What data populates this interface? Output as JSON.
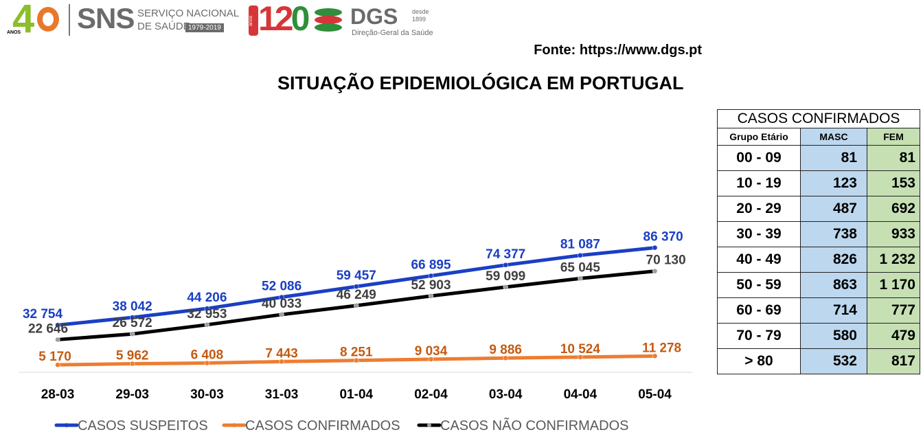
{
  "header": {
    "logo40_number": "4",
    "logo40_anos": "ANOS",
    "sns_name": "SNS",
    "sns_line1": "SERVIÇO NACIONAL",
    "sns_line2": "DE SAÚDE",
    "sns_years": "1979-2019",
    "dgs_anos": "anos",
    "dgs_120_a": "12",
    "dgs_120_b": "0",
    "dgs_name": "DGS",
    "dgs_desde": "desde",
    "dgs_year": "1899",
    "dgs_full": "Direção-Geral da Saúde"
  },
  "source": "Fonte: https://www.dgs.pt",
  "title": "SITUAÇÃO EPIDEMIOLÓGICA EM PORTUGAL",
  "colors": {
    "suspeitos": "#1a3fc4",
    "confirmados": "#ed7d31",
    "confirmados_label": "#c55a11",
    "nao_confirmados": "#000000",
    "nao_confirmados_label": "#404040",
    "masc_cell": "#bdd7ee",
    "fem_cell": "#c6e0b4"
  },
  "chart_data": {
    "type": "line",
    "categories": [
      "28-03",
      "29-03",
      "30-03",
      "31-03",
      "01-04",
      "02-04",
      "03-04",
      "04-04",
      "05-04"
    ],
    "series": [
      {
        "name": "CASOS SUSPEITOS",
        "values": [
          32754,
          38042,
          44206,
          52086,
          59457,
          66895,
          74377,
          81087,
          86370
        ],
        "labels": [
          "32 754",
          "38 042",
          "44 206",
          "52 086",
          "59 457",
          "66 895",
          "74 377",
          "81 087",
          "86 370"
        ]
      },
      {
        "name": "CASOS CONFIRMADOS",
        "values": [
          5170,
          5962,
          6408,
          7443,
          8251,
          9034,
          9886,
          10524,
          11278
        ],
        "labels": [
          "5 170",
          "5 962",
          "6 408",
          "7 443",
          "8 251",
          "9 034",
          "9 886",
          "10 524",
          "11 278"
        ]
      },
      {
        "name": "CASOS NÃO CONFIRMADOS",
        "values": [
          22646,
          26572,
          32953,
          40033,
          46249,
          52903,
          59099,
          65045,
          70130
        ],
        "labels": [
          "22 646",
          "26 572",
          "32 953",
          "40 033",
          "46 249",
          "52 903",
          "59 099",
          "65 045",
          "70 130"
        ]
      }
    ],
    "ylim": [
      0,
      100000
    ],
    "grid": false,
    "legend": "bottom"
  },
  "table": {
    "caption": "CASOS CONFIRMADOS",
    "headers": [
      "Grupo Etário",
      "MASC",
      "FEM"
    ],
    "rows": [
      {
        "group": "00 - 09",
        "masc": "81",
        "fem": "81"
      },
      {
        "group": "10 - 19",
        "masc": "123",
        "fem": "153"
      },
      {
        "group": "20 - 29",
        "masc": "487",
        "fem": "692"
      },
      {
        "group": "30 - 39",
        "masc": "738",
        "fem": "933"
      },
      {
        "group": "40 - 49",
        "masc": "826",
        "fem": "1 232"
      },
      {
        "group": "50 - 59",
        "masc": "863",
        "fem": "1 170"
      },
      {
        "group": "60 - 69",
        "masc": "714",
        "fem": "777"
      },
      {
        "group": "70 - 79",
        "masc": "580",
        "fem": "479"
      },
      {
        "group": "> 80",
        "masc": "532",
        "fem": "817"
      }
    ]
  }
}
